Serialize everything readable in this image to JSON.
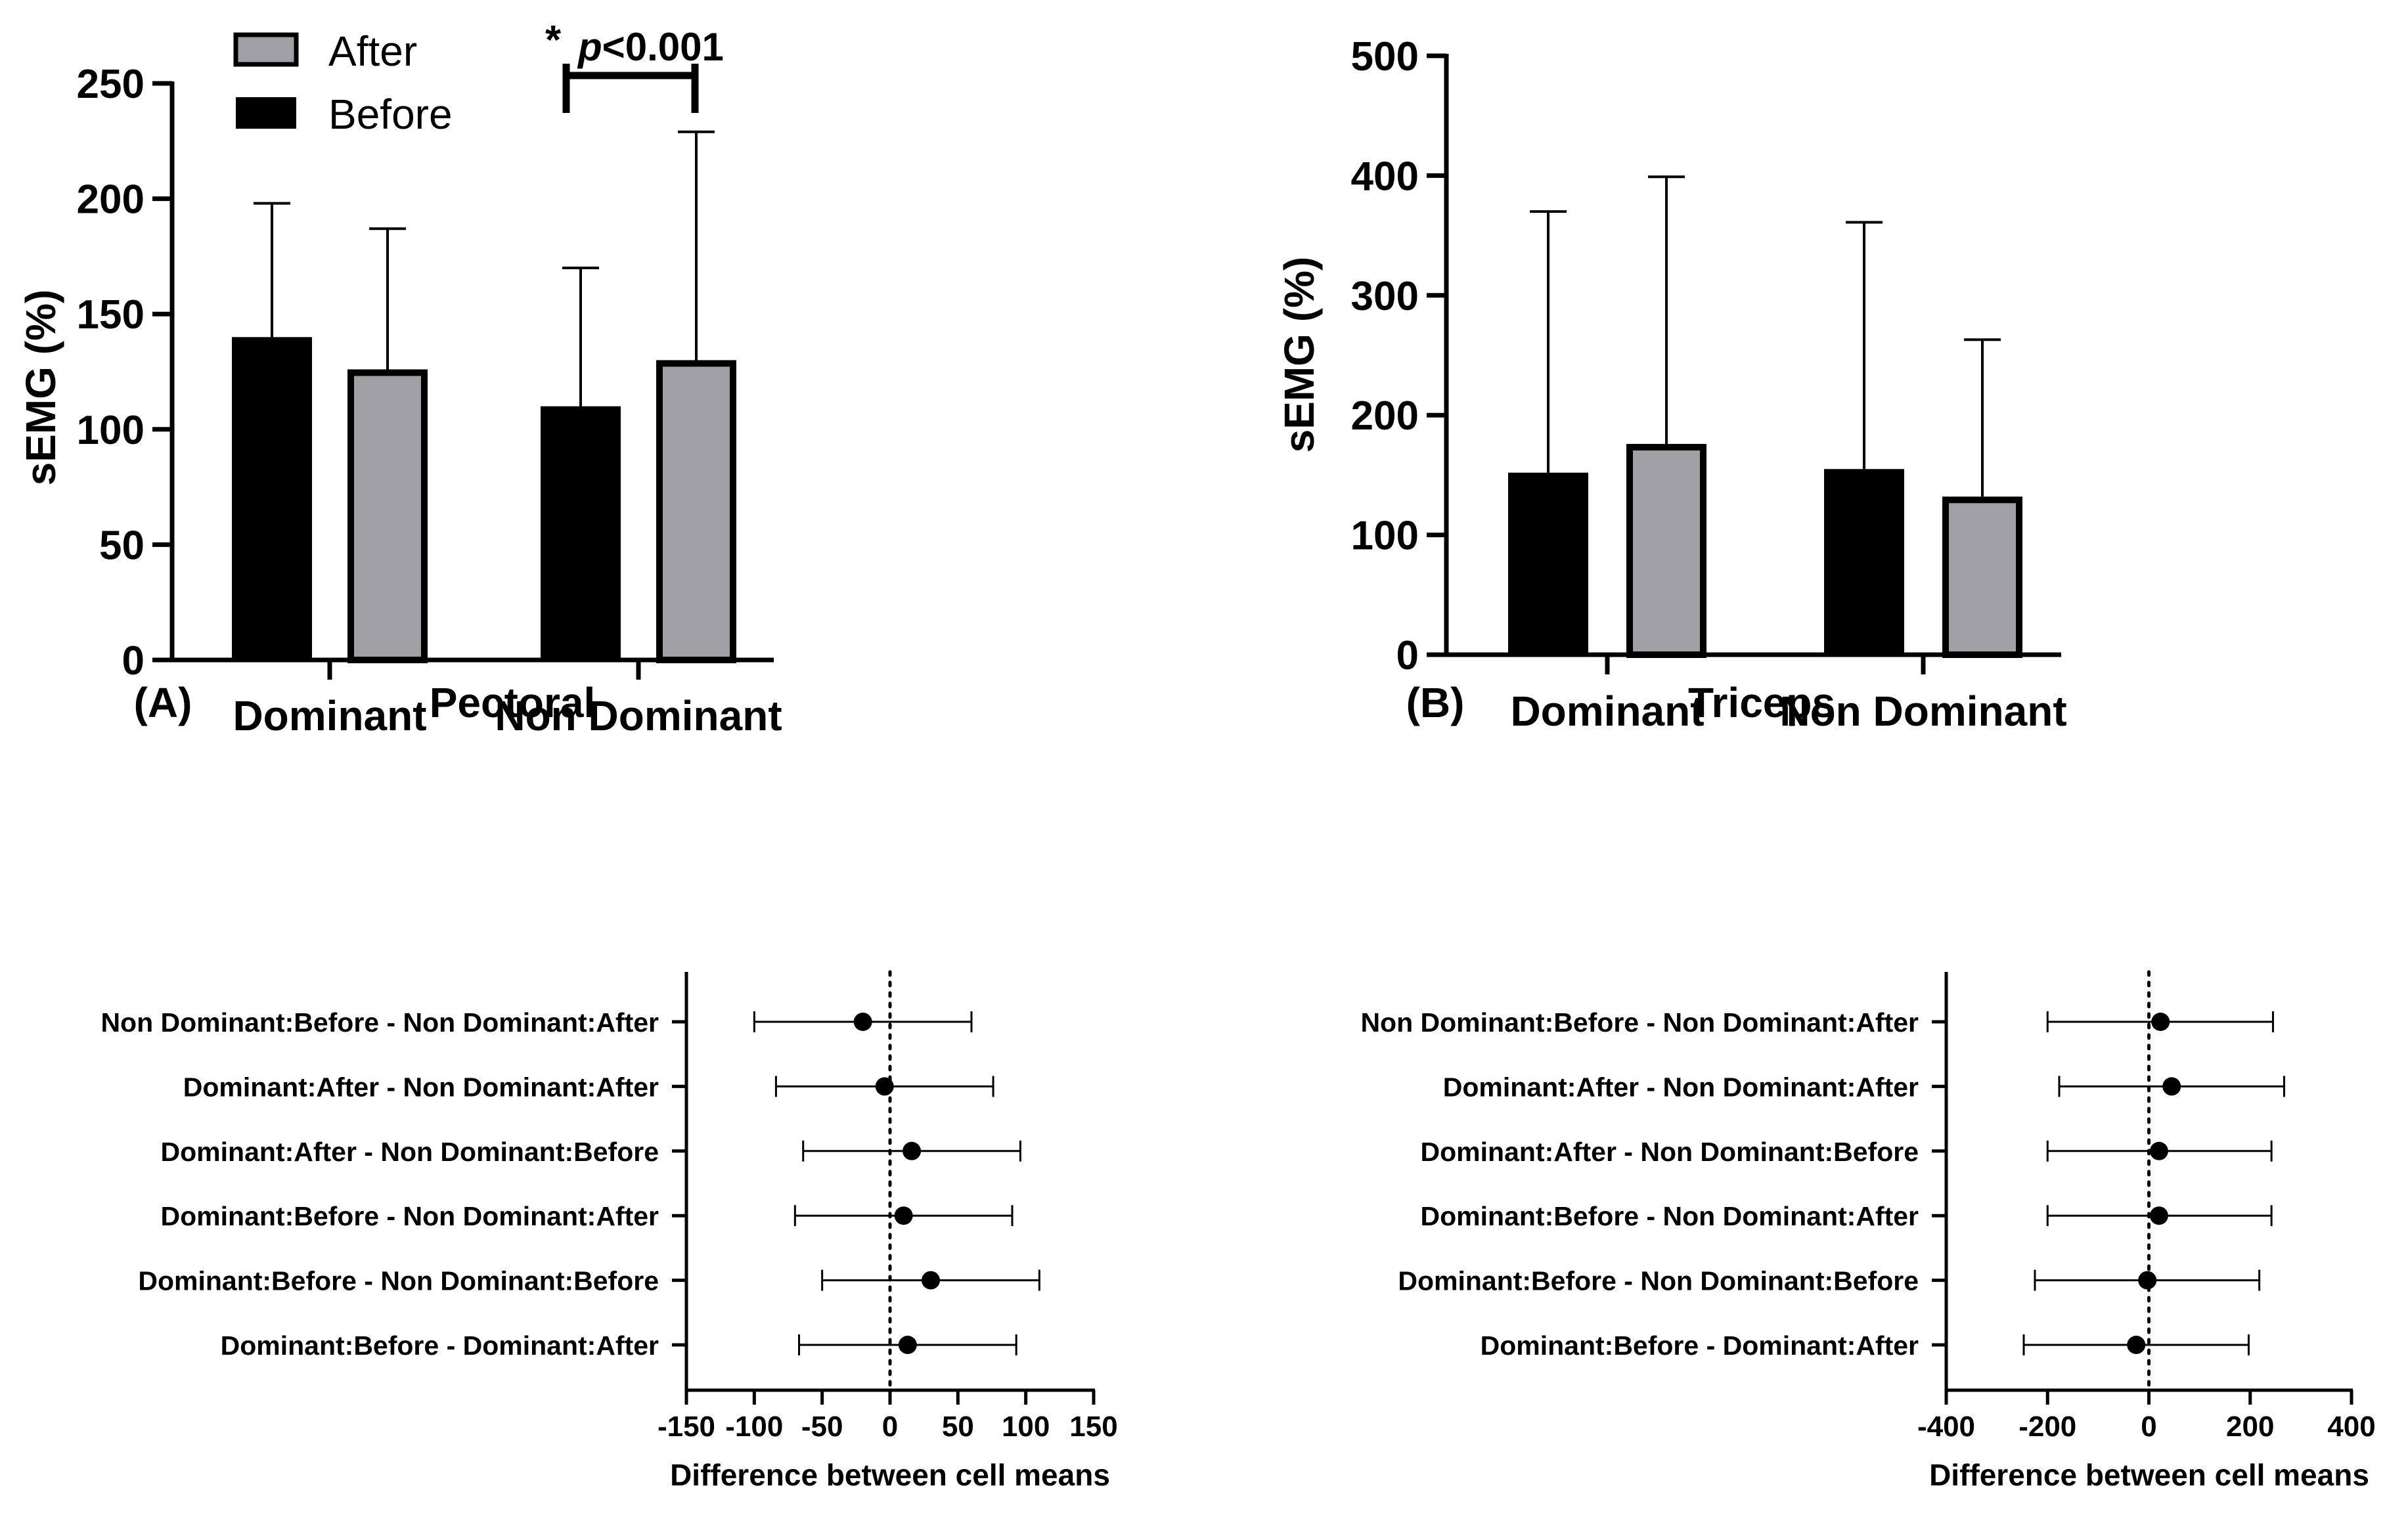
{
  "colors": {
    "before": "#000000",
    "after": "#a0a0a4",
    "axis": "#000000"
  },
  "chart_data": [
    {
      "type": "bar",
      "panel_label": "(A)",
      "title": "Pectoral",
      "xlabel": "",
      "ylabel": "sEMG (%)",
      "categories": [
        "Dominant",
        "Non Dominant"
      ],
      "ylim": [
        0,
        250
      ],
      "yticks": [
        0,
        50,
        100,
        150,
        200,
        250
      ],
      "grid": false,
      "legend_position": "top-left",
      "legend": [
        "After",
        "Before"
      ],
      "series": [
        {
          "name": "Before",
          "values": [
            140,
            110
          ],
          "error_upper": [
            198,
            170
          ]
        },
        {
          "name": "After",
          "values": [
            126,
            130
          ],
          "error_upper": [
            187,
            229
          ]
        }
      ],
      "annotation": {
        "star": "*",
        "p": "p",
        "rest": "<0.001"
      }
    },
    {
      "type": "bar",
      "panel_label": "(B)",
      "title": "Triceps",
      "xlabel": "",
      "ylabel": "sEMG (%)",
      "categories": [
        "Dominant",
        "Non Dominant"
      ],
      "ylim": [
        0,
        500
      ],
      "yticks": [
        0,
        100,
        200,
        300,
        400,
        500
      ],
      "grid": false,
      "series": [
        {
          "name": "Before",
          "values": [
            152,
            155
          ],
          "error_upper": [
            370,
            361
          ]
        },
        {
          "name": "After",
          "values": [
            176,
            132
          ],
          "error_upper": [
            399,
            263
          ]
        }
      ]
    },
    {
      "type": "scatter",
      "xlabel": "Difference between cell means",
      "ylabel": "",
      "xlim": [
        -150,
        150
      ],
      "xticks": [
        -150,
        -100,
        -50,
        0,
        50,
        100,
        150
      ],
      "grid": false,
      "rows": [
        {
          "label": "Non Dominant:Before - Non Dominant:After",
          "mean": -20,
          "lower": -100,
          "upper": 60
        },
        {
          "label": "Dominant:After - Non Dominant:After",
          "mean": -4,
          "lower": -84,
          "upper": 76
        },
        {
          "label": "Dominant:After - Non Dominant:Before",
          "mean": 16,
          "lower": -64,
          "upper": 96
        },
        {
          "label": "Dominant:Before - Non Dominant:After",
          "mean": 10,
          "lower": -70,
          "upper": 90
        },
        {
          "label": "Dominant:Before - Non Dominant:Before",
          "mean": 30,
          "lower": -50,
          "upper": 110
        },
        {
          "label": "Dominant:Before - Dominant:After",
          "mean": 13,
          "lower": -67,
          "upper": 93
        }
      ]
    },
    {
      "type": "scatter",
      "xlabel": "Difference between cell means",
      "ylabel": "",
      "xlim": [
        -400,
        400
      ],
      "xticks": [
        -400,
        -200,
        0,
        200,
        400
      ],
      "grid": false,
      "rows": [
        {
          "label": "Non Dominant:Before - Non Dominant:After",
          "mean": 23,
          "lower": -200,
          "upper": 245
        },
        {
          "label": "Dominant:After - Non Dominant:After",
          "mean": 45,
          "lower": -177,
          "upper": 267
        },
        {
          "label": "Dominant:After - Non Dominant:Before",
          "mean": 20,
          "lower": -200,
          "upper": 242
        },
        {
          "label": "Dominant:Before - Non Dominant:After",
          "mean": 20,
          "lower": -200,
          "upper": 242
        },
        {
          "label": "Dominant:Before - Non Dominant:Before",
          "mean": -3,
          "lower": -225,
          "upper": 218
        },
        {
          "label": "Dominant:Before - Dominant:After",
          "mean": -25,
          "lower": -247,
          "upper": 197
        }
      ]
    }
  ]
}
